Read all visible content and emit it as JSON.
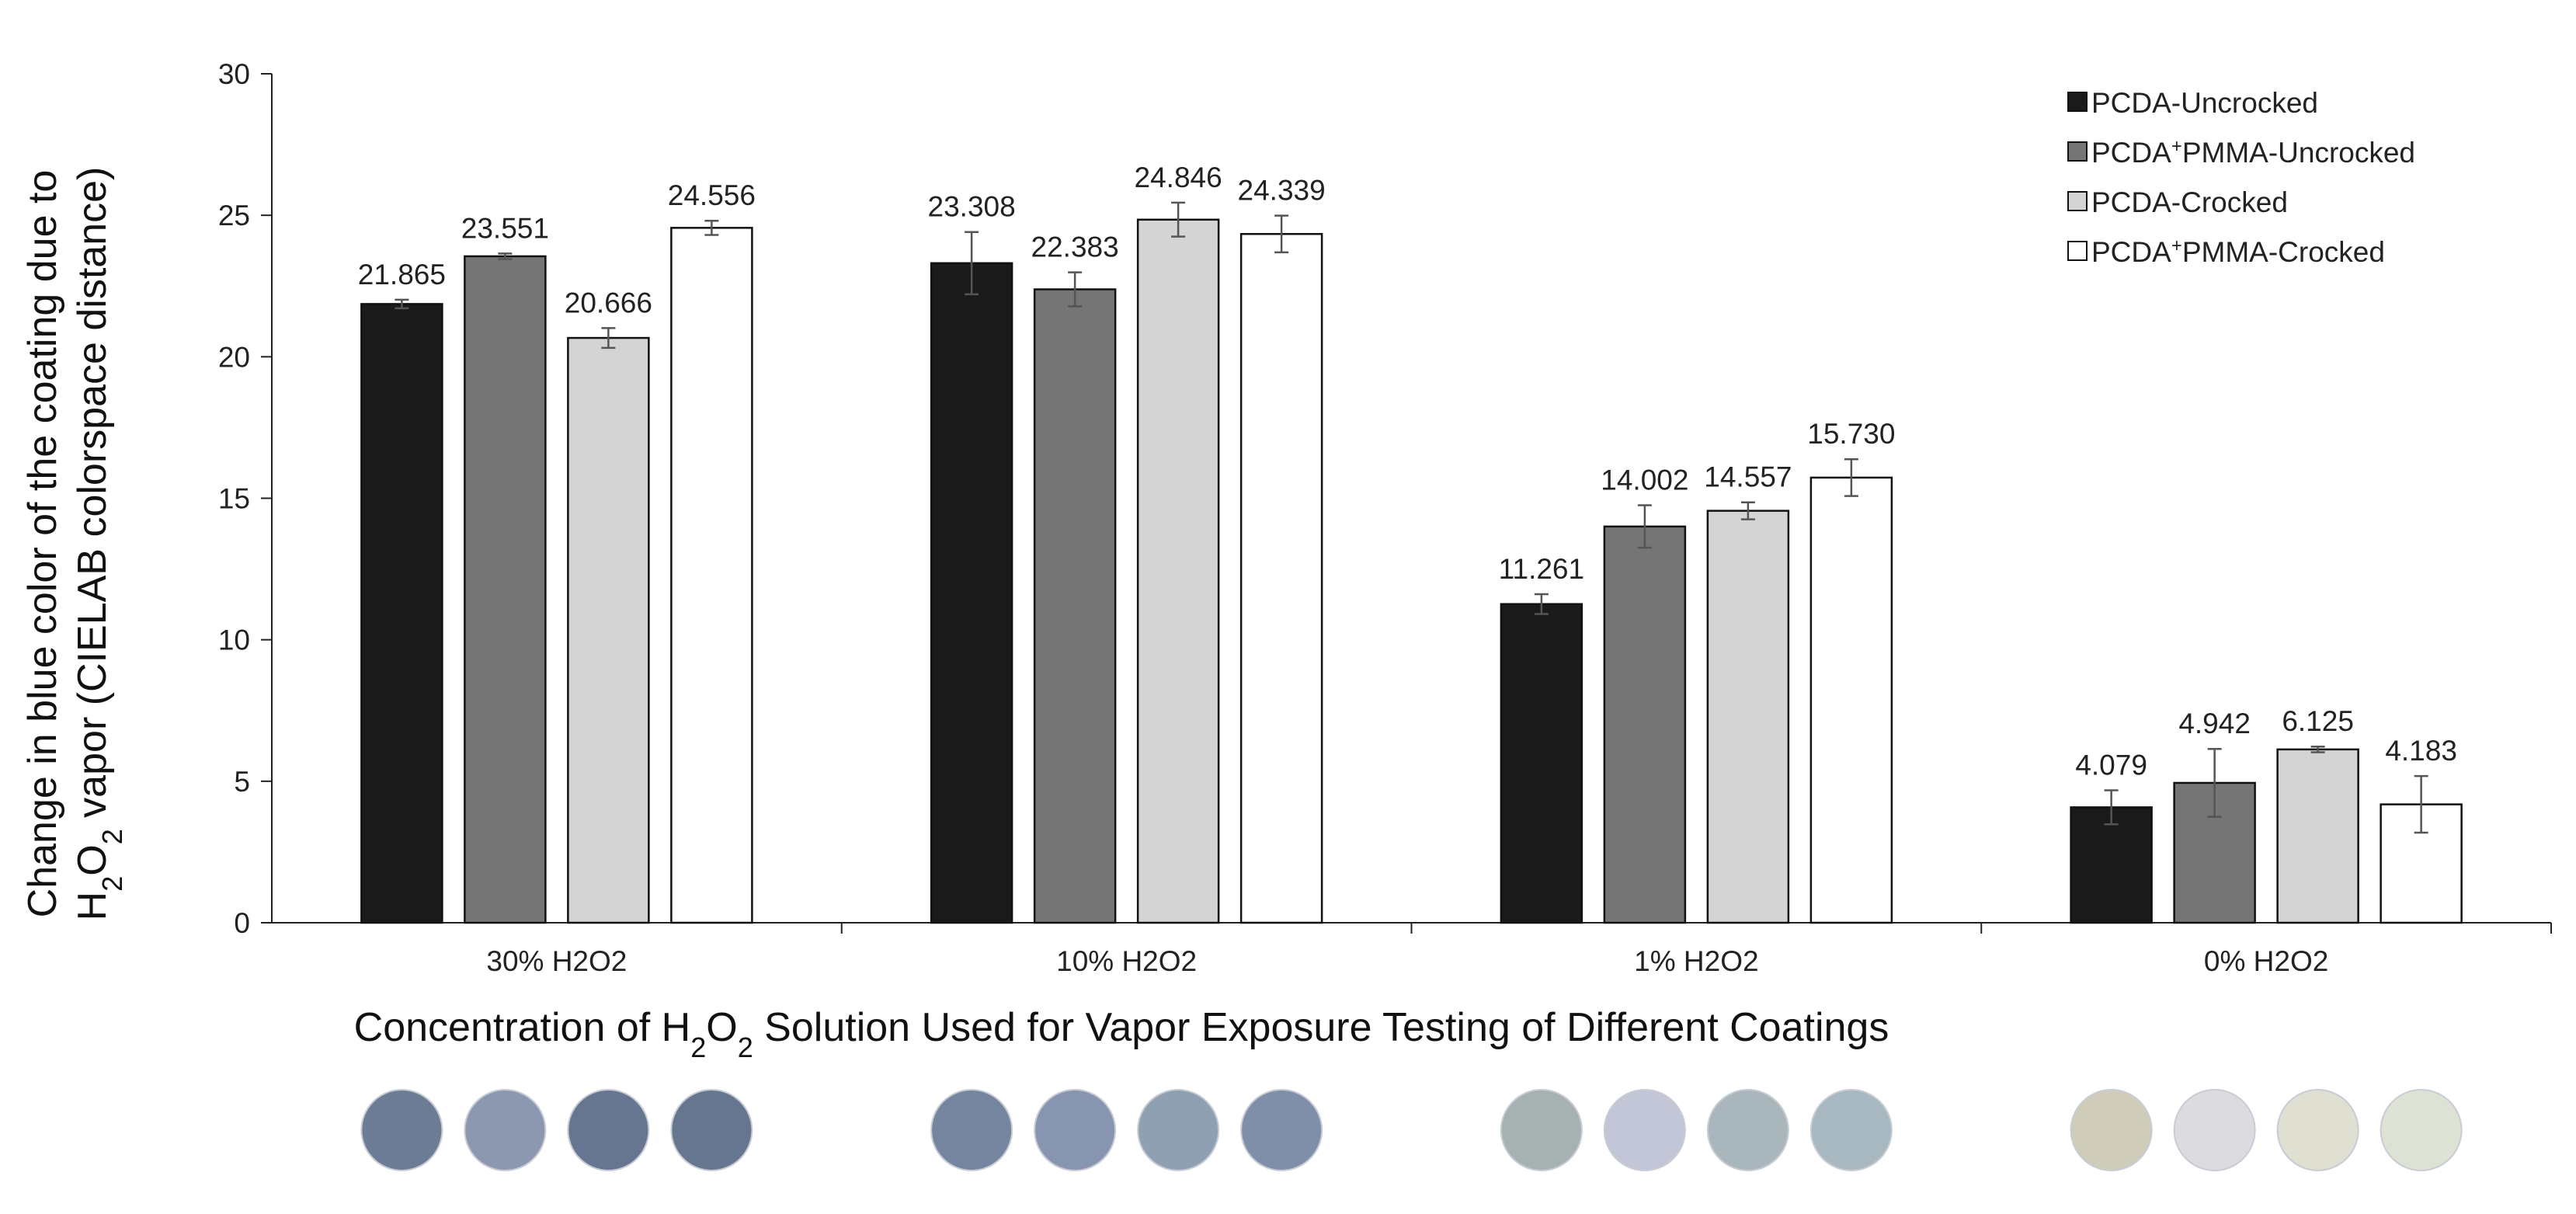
{
  "chart_data": {
    "type": "bar",
    "categories": [
      "30% H2O2",
      "10% H2O2",
      "1% H2O2",
      "0% H2O2"
    ],
    "series": [
      {
        "name": "PCDA-Uncrocked",
        "color": "#1a1a1a",
        "values": [
          21.865,
          23.308,
          11.261,
          4.079
        ],
        "errors": [
          0.15,
          1.1,
          0.35,
          0.6
        ],
        "labels": [
          "21.865",
          "23.308",
          "11.261",
          "4.079"
        ]
      },
      {
        "name": "PCDA+PMMA-Uncrocked",
        "color": "#757575",
        "values": [
          23.551,
          22.383,
          14.002,
          4.942
        ],
        "errors": [
          0.1,
          0.6,
          0.75,
          1.2
        ],
        "labels": [
          "23.551",
          "22.383",
          "14.002",
          "4.942"
        ]
      },
      {
        "name": "PCDA-Crocked",
        "color": "#d4d4d4",
        "values": [
          20.666,
          24.846,
          14.557,
          6.125
        ],
        "errors": [
          0.35,
          0.6,
          0.3,
          0.1
        ],
        "labels": [
          "20.666",
          "24.846",
          "14.557",
          "6.125"
        ]
      },
      {
        "name": "PCDA+PMMA-Crocked",
        "color": "#ffffff",
        "values": [
          24.556,
          24.339,
          15.73,
          4.183
        ],
        "errors": [
          0.25,
          0.65,
          0.65,
          1.0
        ],
        "labels": [
          "24.556",
          "24.339",
          "15.730",
          "4.183"
        ]
      }
    ],
    "ylim": [
      0,
      30
    ],
    "yticks": [
      0,
      5,
      10,
      15,
      20,
      25,
      30
    ],
    "ylabel": {
      "line1": "Change in blue color of the coating due to",
      "line2_pre": "H",
      "line2_sub1": "2",
      "line2_mid": "O",
      "line2_sub2": "2",
      "line2_post": " vapor (CIELAB colorspace distance)"
    },
    "xlabel": {
      "pre": "Concentration of H",
      "sub1": "2",
      "mid": "O",
      "sub2": "2",
      "post": " Solution Used for Vapor Exposure Testing of Different Coatings"
    },
    "legend": {
      "position": "top-right",
      "entries": [
        {
          "pre": "PCDA-Uncrocked",
          "plus": "",
          "post": ""
        },
        {
          "pre": "PCDA",
          "plus": "+",
          "post": "PMMA-Uncrocked"
        },
        {
          "pre": "PCDA-Crocked",
          "plus": "",
          "post": ""
        },
        {
          "pre": "PCDA",
          "plus": "+",
          "post": "PMMA-Crocked"
        }
      ]
    },
    "sample_swatches": [
      [
        "#6d7c95",
        "#8c98b0",
        "#677690",
        "#67768f"
      ],
      [
        "#7585a0",
        "#8795b1",
        "#8fa0b2",
        "#7f8fa9"
      ],
      [
        "#a6b1b2",
        "#c3c6d6",
        "#a9b7bd",
        "#a7b8c0"
      ],
      [
        "#cfccb9",
        "#dcdce0",
        "#dfdfd2",
        "#dee2d4"
      ]
    ]
  }
}
